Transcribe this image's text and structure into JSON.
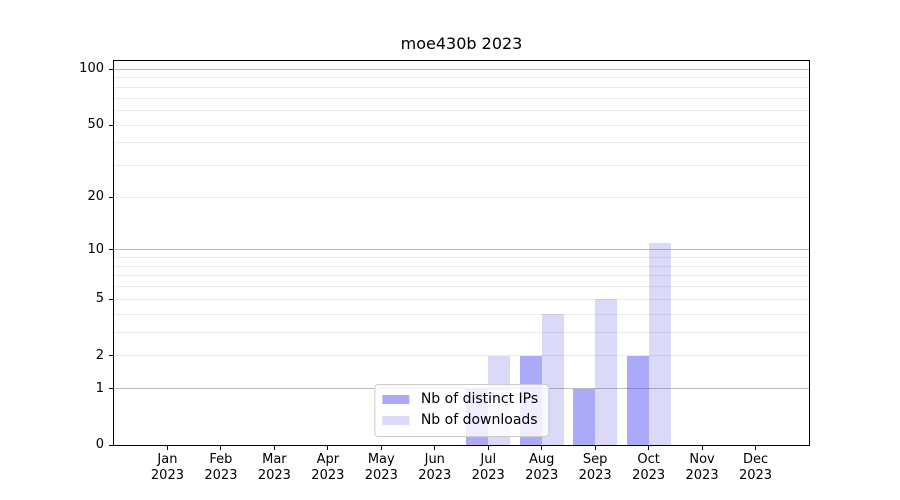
{
  "title": "moe430b 2023",
  "chart_data": {
    "type": "bar",
    "title": "moe430b 2023",
    "x_months": [
      "Jan",
      "Feb",
      "Mar",
      "Apr",
      "May",
      "Jun",
      "Jul",
      "Aug",
      "Sep",
      "Oct",
      "Nov",
      "Dec"
    ],
    "x_year": "2023",
    "series": [
      {
        "name": "Nb of distinct IPs",
        "bar_color": "rgba(85,85,241,0.5)",
        "legend_color": "#aaaaf8",
        "values": [
          0,
          0,
          0,
          0,
          0,
          0,
          1,
          2,
          1,
          2,
          0,
          0
        ]
      },
      {
        "name": "Nb of downloads",
        "bar_color": "rgba(70,70,220,0.2)",
        "legend_color": "#dadaf8",
        "values": [
          0,
          0,
          0,
          0,
          0,
          0,
          2,
          4,
          5,
          11,
          0,
          0
        ]
      }
    ],
    "yscale": "log1p",
    "ylim": [
      0,
      111
    ],
    "ytick_labels": [
      0,
      1,
      2,
      5,
      10,
      20,
      50,
      100
    ],
    "major_gridlines": [
      1,
      10,
      100
    ],
    "minor_gridlines": [
      2,
      3,
      4,
      5,
      6,
      7,
      8,
      9,
      20,
      30,
      40,
      50,
      60,
      70,
      80,
      90
    ],
    "grid": true,
    "legend_position": "lower center"
  },
  "colors": {
    "background": "#ffffff",
    "axis": "#000000",
    "grid_minor": "#ebebeb",
    "grid_major": "#bdbdbd",
    "legend_border": "#cccccc"
  }
}
